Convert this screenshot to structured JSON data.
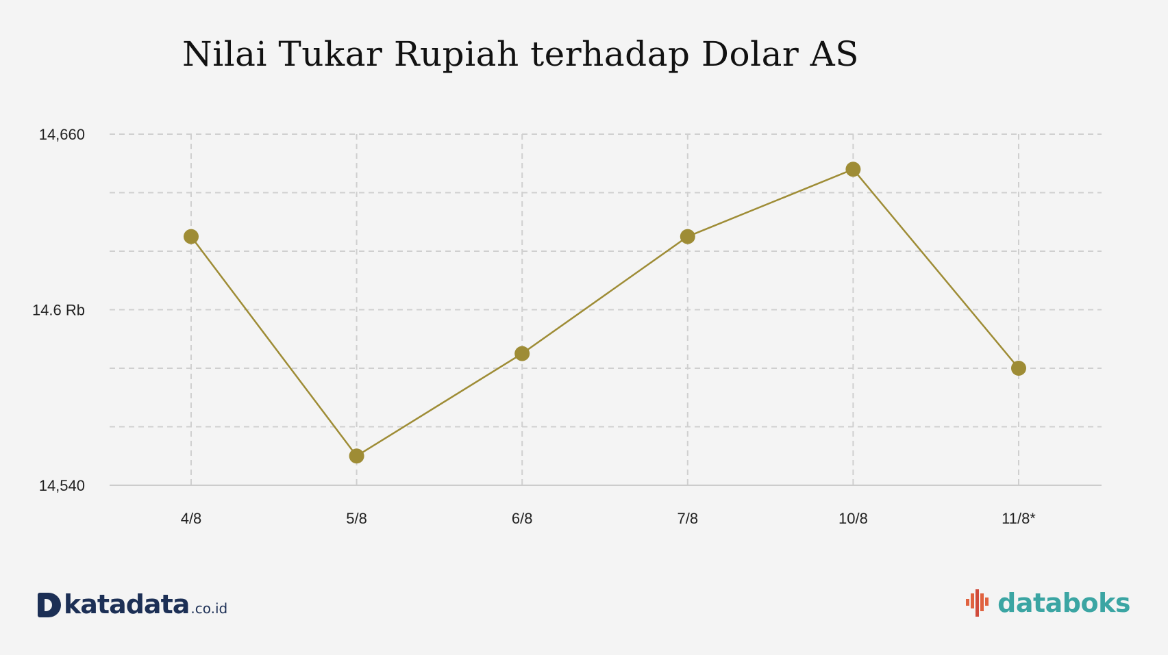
{
  "chart_data": {
    "type": "line",
    "title": "Nilai Tukar Rupiah terhadap Dolar AS",
    "categories": [
      "4/8",
      "5/8",
      "6/8",
      "7/8",
      "10/8",
      "11/8*"
    ],
    "series": [
      {
        "values": [
          14625,
          14550,
          14585,
          14625,
          14648,
          14580
        ]
      }
    ],
    "ylim": [
      14540,
      14660
    ],
    "ytick_labels": [
      "14,540",
      "14.6 Rb",
      "14,660"
    ],
    "ytick_values": [
      14540,
      14600,
      14660
    ],
    "grid": true,
    "line_color": "#9e8c35"
  },
  "brand": {
    "left_main": "katadata",
    "left_suffix": ".co.id",
    "right": "databoks"
  }
}
